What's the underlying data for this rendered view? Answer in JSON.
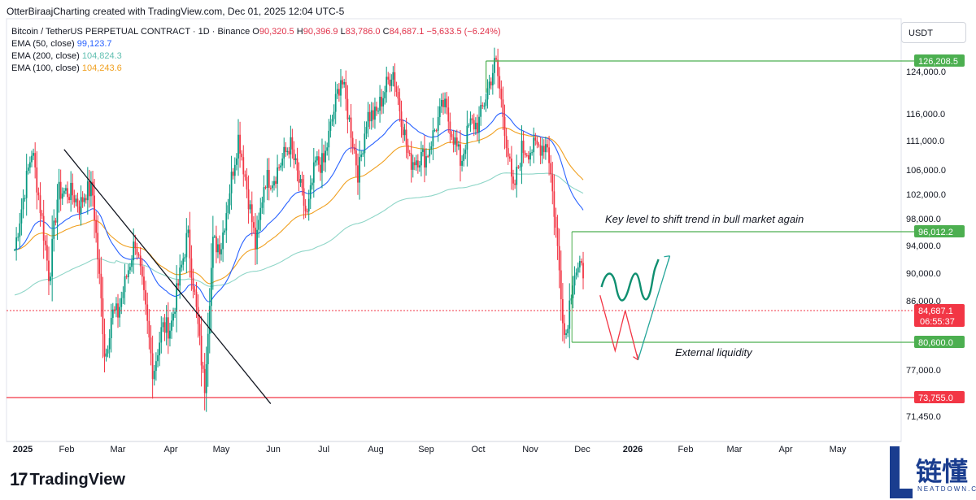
{
  "header": {
    "author_line": "OtterBiraajCharting created with TradingView.com, Dec 01, 2025 12:04 UTC-5"
  },
  "legend": {
    "symbol": "Bitcoin / TetherUS PERPETUAL CONTRACT · 1D · Binance",
    "open_label": "O",
    "open": "90,320.5",
    "high_label": "H",
    "high": "90,396.9",
    "low_label": "L",
    "low": "83,786.0",
    "close_label": "C",
    "close": "84,687.1",
    "change": "−5,633.5 (−6.24%)",
    "ema50_label": "EMA (50, close)",
    "ema50_value": "99,123.7",
    "ema200_label": "EMA (200, close)",
    "ema200_value": "104,824.3",
    "ema100_label": "EMA (100, close)",
    "ema100_value": "104,243.6"
  },
  "currency_button": "USDT",
  "colors": {
    "up": "#089981",
    "down": "#f23645",
    "ema50": "#2962ff",
    "ema100": "#f0a020",
    "ema200": "#8fd6c8",
    "level": "#4caf50",
    "red_level": "#f23645"
  },
  "chart_data": {
    "type": "candlestick",
    "title": "Bitcoin / TetherUS PERPETUAL CONTRACT · 1D · Binance",
    "x_tick_labels": [
      "2025",
      "Feb",
      "Mar",
      "Apr",
      "May",
      "Jun",
      "Jul",
      "Aug",
      "Sep",
      "Oct",
      "Nov",
      "Dec",
      "2026",
      "Feb",
      "Mar",
      "Apr",
      "May"
    ],
    "y_tick_labels": [
      {
        "value": 124000,
        "label": "124,000.0"
      },
      {
        "value": 116000,
        "label": "116,000.0"
      },
      {
        "value": 111000,
        "label": "111,000.0"
      },
      {
        "value": 106000,
        "label": "106,000.0"
      },
      {
        "value": 102000,
        "label": "102,000.0"
      },
      {
        "value": 98000,
        "label": "98,000.0"
      },
      {
        "value": 94000,
        "label": "94,000.0"
      },
      {
        "value": 90000,
        "label": "90,000.0"
      },
      {
        "value": 86000,
        "label": "86,000.0"
      },
      {
        "value": 77000,
        "label": "77,000.0"
      },
      {
        "value": 71450,
        "label": "71,450.0"
      }
    ],
    "price_badges": [
      {
        "label": "126,208.5",
        "value": 126208.5,
        "kind": "level"
      },
      {
        "label": "96,012.2",
        "value": 96012.2,
        "kind": "level"
      },
      {
        "label": "84,687.1",
        "value": 84687.1,
        "kind": "last",
        "countdown": "06:55:37"
      },
      {
        "label": "80,600.0",
        "value": 80600,
        "kind": "level"
      },
      {
        "label": "73,755.0",
        "value": 73755,
        "kind": "red"
      }
    ],
    "annotations": [
      {
        "text": "Key level to shift trend in bull market again",
        "price": 96012.2
      },
      {
        "text": "External liquidity",
        "price": 80600
      }
    ],
    "monthly_ohlc": [
      {
        "month": "Jan 2025",
        "open": 93400,
        "high": 109500,
        "low": 89200,
        "close": 102400
      },
      {
        "month": "Feb 2025",
        "open": 102400,
        "high": 102700,
        "low": 78300,
        "close": 84300
      },
      {
        "month": "Mar 2025",
        "open": 84300,
        "high": 95000,
        "low": 76600,
        "close": 82500
      },
      {
        "month": "Apr 2025",
        "open": 82500,
        "high": 95700,
        "low": 74500,
        "close": 94200
      },
      {
        "month": "May 2025",
        "open": 94200,
        "high": 111900,
        "low": 93400,
        "close": 104600
      },
      {
        "month": "Jun 2025",
        "open": 104600,
        "high": 110500,
        "low": 98200,
        "close": 107100
      },
      {
        "month": "Jul 2025",
        "open": 107100,
        "high": 123200,
        "low": 105100,
        "close": 115700
      },
      {
        "month": "Aug 2025",
        "open": 115700,
        "high": 124500,
        "low": 107300,
        "close": 108200
      },
      {
        "month": "Sep 2025",
        "open": 108200,
        "high": 117900,
        "low": 107200,
        "close": 114000
      },
      {
        "month": "Oct 2025",
        "open": 114000,
        "high": 126200,
        "low": 102000,
        "close": 109500
      },
      {
        "month": "Nov 2025",
        "open": 109500,
        "high": 110600,
        "low": 80600,
        "close": 90300
      },
      {
        "month": "Dec 2025",
        "open": 90300,
        "high": 90400,
        "low": 83800,
        "close": 84700
      }
    ]
  },
  "footer": {
    "logo_text": "TradingView",
    "logo_mark": "17"
  },
  "brand": {
    "name": "链懂",
    "url": "NEATDOWN.COM"
  }
}
